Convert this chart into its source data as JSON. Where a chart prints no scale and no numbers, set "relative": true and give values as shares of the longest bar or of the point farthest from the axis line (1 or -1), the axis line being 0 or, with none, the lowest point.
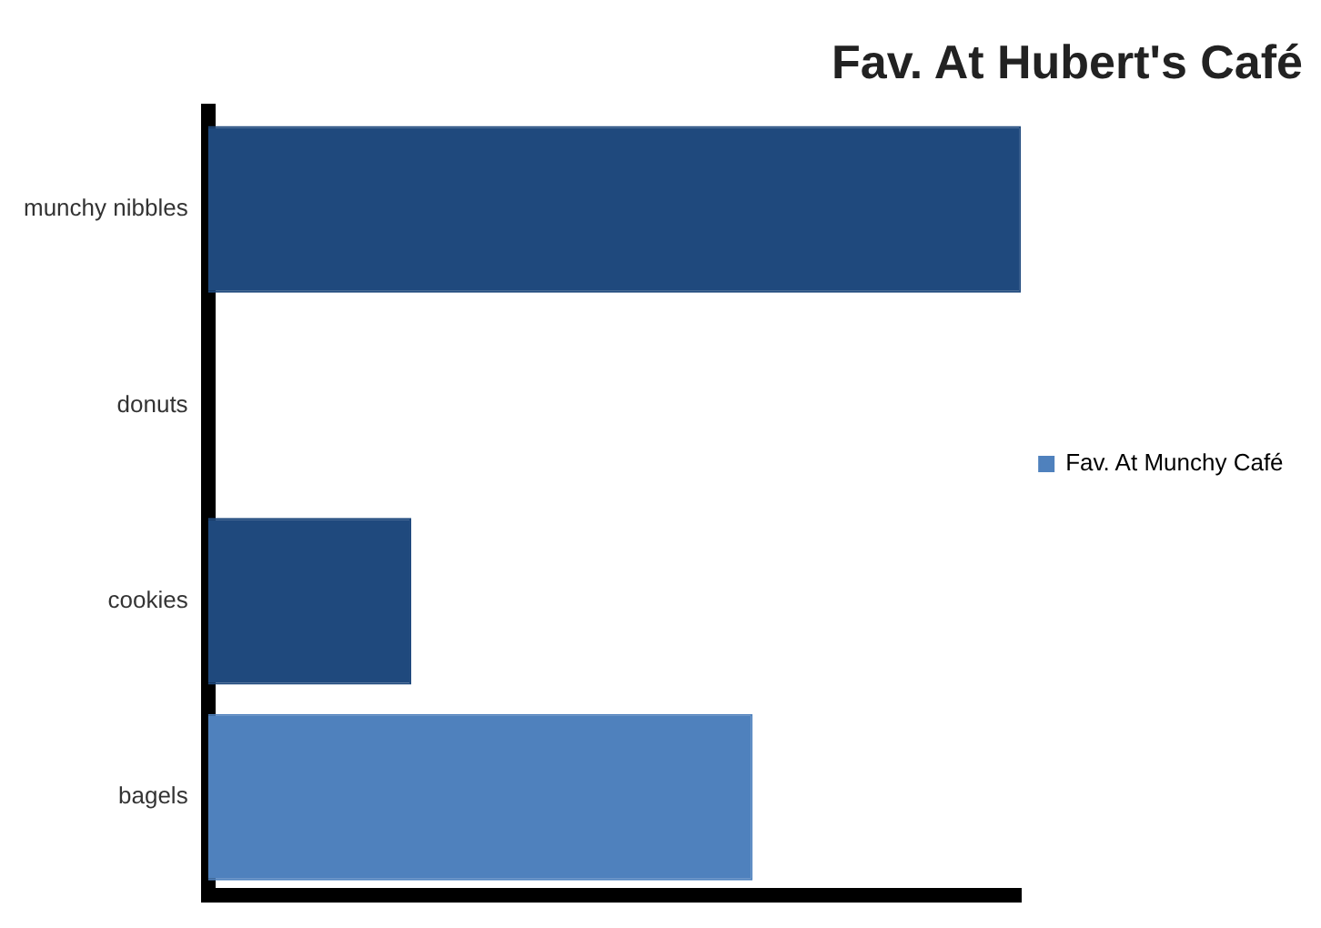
{
  "chart_data": {
    "type": "bar",
    "orientation": "horizontal",
    "relative": true,
    "title": "Fav. At Hubert's Café",
    "categories": [
      "munchy nibbles",
      "donuts",
      "cookies",
      "bagels"
    ],
    "series": [
      {
        "name": "Fav. At Munchy Café",
        "color": "#4f81bd",
        "colors": [
          "#1f497d",
          "#1f497d",
          "#1f497d",
          "#4f81bd"
        ],
        "values": [
          1,
          null,
          0.25,
          0.67
        ]
      }
    ],
    "legend": "right"
  }
}
